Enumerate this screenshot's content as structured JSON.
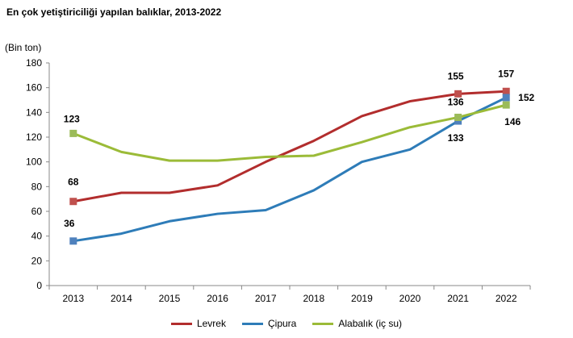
{
  "chart_data": {
    "type": "line",
    "title": "En çok yetiştiriciliği yapılan balıklar, 2013-2022",
    "ylabel": "(Bin ton)",
    "xlabel": "",
    "categories": [
      "2013",
      "2014",
      "2015",
      "2016",
      "2017",
      "2018",
      "2019",
      "2020",
      "2021",
      "2022"
    ],
    "ylim": [
      0,
      180
    ],
    "yticks": [
      "0",
      "20",
      "40",
      "60",
      "80",
      "100",
      "120",
      "140",
      "160",
      "180"
    ],
    "grid": false,
    "legend_position": "bottom",
    "series": [
      {
        "name": "Levrek",
        "color": "#b22d2d",
        "marker_color": "#c0504d",
        "values": [
          68,
          75,
          75,
          81,
          100,
          117,
          137,
          149,
          155,
          157
        ],
        "labels": {
          "0": "68",
          "8": "155",
          "9": "157"
        }
      },
      {
        "name": "Çipura",
        "color": "#2e7cb8",
        "marker_color": "#4f81bd",
        "values": [
          36,
          42,
          52,
          58,
          61,
          77,
          100,
          110,
          133,
          152
        ],
        "labels": {
          "0": "36",
          "8": "133",
          "9": "152"
        }
      },
      {
        "name": "Alabalık (iç su)",
        "color": "#9bbb38",
        "marker_color": "#9bbb59",
        "values": [
          123,
          108,
          101,
          101,
          104,
          105,
          116,
          128,
          136,
          146
        ],
        "labels": {
          "0": "123",
          "8": "136",
          "9": "146"
        }
      }
    ]
  }
}
